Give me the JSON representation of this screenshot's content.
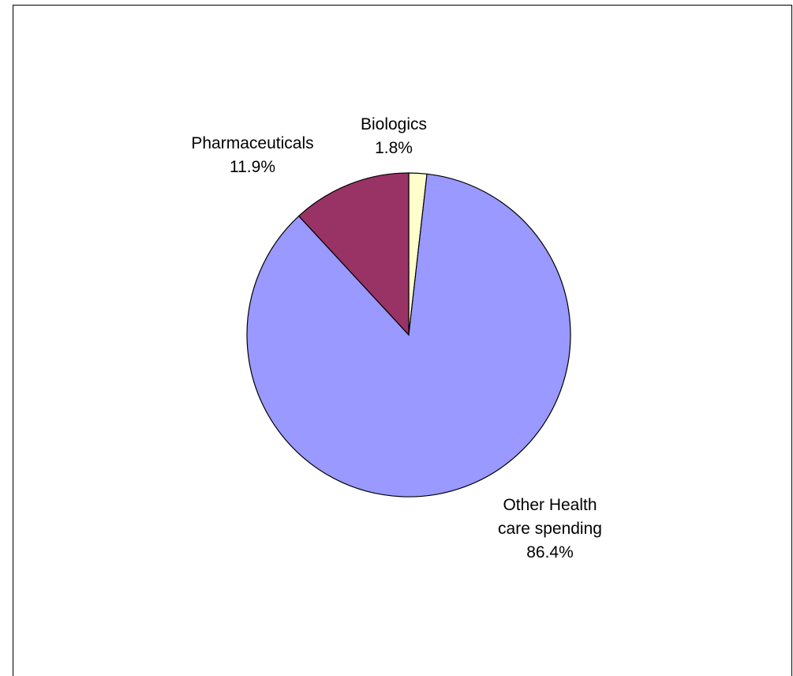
{
  "chart_data": {
    "type": "pie",
    "title": "",
    "slices": [
      {
        "label_lines": [
          "Biologics"
        ],
        "value": 1.8,
        "value_label": "1.8%",
        "color": "#FFFFCC"
      },
      {
        "label_lines": [
          "Other Health",
          "care spending"
        ],
        "value": 86.4,
        "value_label": "86.4%",
        "color": "#9999FF"
      },
      {
        "label_lines": [
          "Pharmaceuticals"
        ],
        "value": 11.9,
        "value_label": "11.9%",
        "color": "#993366"
      }
    ],
    "start_angle": "12 o'clock",
    "direction": "clockwise",
    "legend": "none"
  }
}
